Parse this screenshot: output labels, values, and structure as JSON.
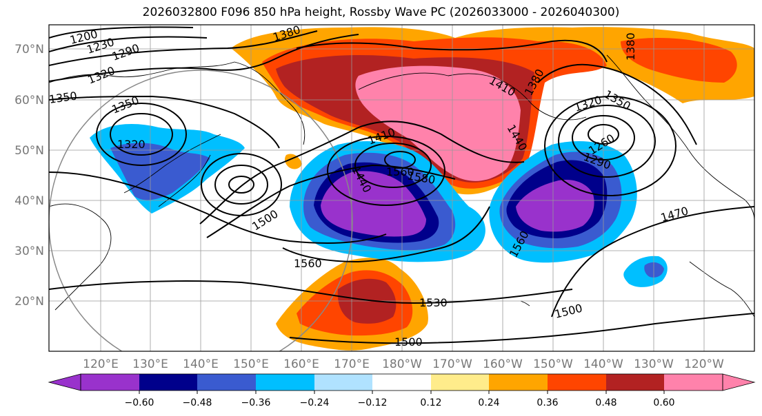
{
  "title": "2026032800 F096 850 hPa height, Rossby Wave PC (2026033000 - 2026040300)",
  "map": {
    "lat_labels": [
      "70°N",
      "60°N",
      "50°N",
      "40°N",
      "30°N",
      "20°N"
    ],
    "lon_labels": [
      "120°E",
      "130°E",
      "140°E",
      "150°E",
      "160°E",
      "170°E",
      "180°W",
      "170°W",
      "160°W",
      "150°W",
      "140°W",
      "130°W",
      "120°W"
    ],
    "contour_labels": [
      "1200",
      "1230",
      "1290",
      "1320",
      "1350",
      "1350",
      "1380",
      "1380",
      "1380",
      "1320",
      "1410",
      "1410",
      "1440",
      "1440",
      "1560",
      "1580",
      "1500",
      "1560",
      "1560",
      "1530",
      "1500",
      "1500",
      "1470",
      "1290",
      "1260",
      "1320",
      "1350"
    ],
    "colors": {
      "neg_060": "#9932cc",
      "neg_048": "#00008b",
      "neg_036": "#3a5bd0",
      "neg_024": "#00bfff",
      "neg_012": "#b0e2ff",
      "neutral": "#ffffff",
      "pos_012": "#ffec8b",
      "pos_024": "#ffa500",
      "pos_036": "#ff4500",
      "pos_048": "#b22222",
      "pos_060": "#ff82ab"
    }
  },
  "colorbar": {
    "ticks": [
      "−0.60",
      "−0.48",
      "−0.36",
      "−0.24",
      "−0.12",
      "0.12",
      "0.24",
      "0.36",
      "0.48",
      "0.60"
    ],
    "segment_colors": [
      "#9932cc",
      "#00008b",
      "#3a5bd0",
      "#00bfff",
      "#b0e2ff",
      "#ffffff",
      "#ffec8b",
      "#ffa500",
      "#ff4500",
      "#b22222",
      "#ff82ab"
    ]
  }
}
